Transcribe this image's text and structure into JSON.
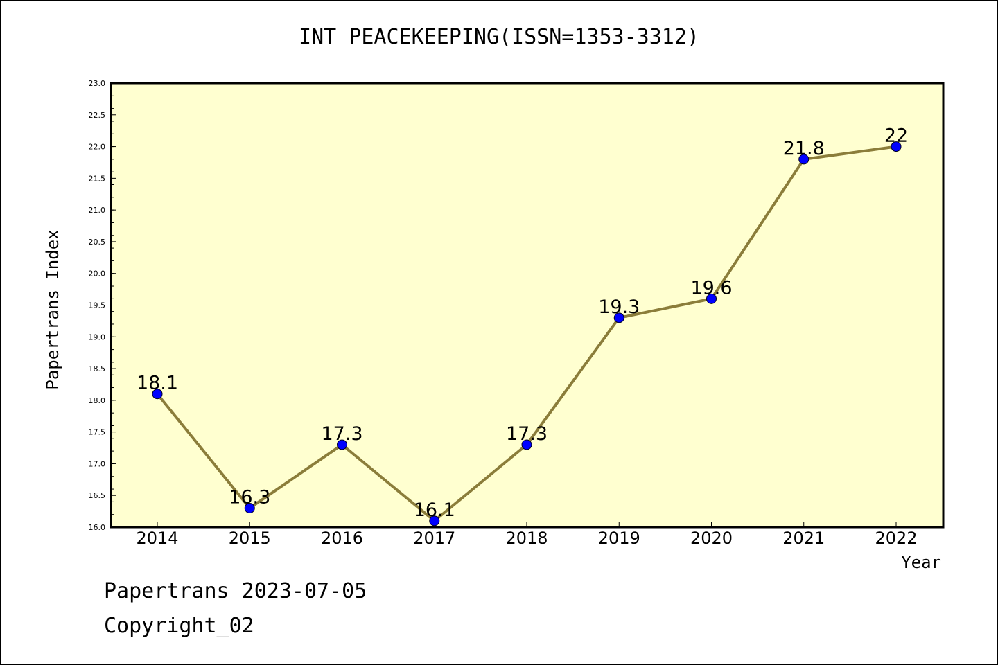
{
  "chart_data": {
    "type": "line",
    "title": "INT PEACEKEEPING(ISSN=1353-3312)",
    "xlabel": "Year",
    "ylabel": "Papertrans Index",
    "categories": [
      "2014",
      "2015",
      "2016",
      "2017",
      "2018",
      "2019",
      "2020",
      "2021",
      "2022"
    ],
    "series": [
      {
        "values": [
          18.1,
          16.3,
          17.3,
          16.1,
          17.3,
          19.3,
          19.6,
          21.8,
          22
        ],
        "labels": [
          "18.1",
          "16.3",
          "17.3",
          "16.1",
          "17.3",
          "19.3",
          "19.6",
          "21.8",
          "22"
        ]
      }
    ],
    "ylim": [
      16.0,
      23.0
    ],
    "yticks": [
      "16.0",
      "16.5",
      "17.0",
      "17.5",
      "18.0",
      "18.5",
      "19.0",
      "19.5",
      "20.0",
      "20.5",
      "21.0",
      "21.5",
      "22.0",
      "22.5",
      "23.0"
    ],
    "grid": false,
    "line_color": "#8b7d3a",
    "marker_color": "#0000ff",
    "plot_background": "#ffffd0"
  },
  "footer": {
    "line1": "Papertrans 2023-07-05",
    "line2": "Copyright_02"
  }
}
